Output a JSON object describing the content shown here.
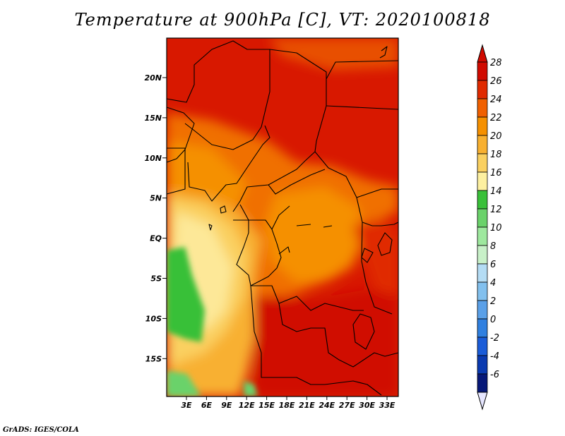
{
  "title": "Temperature at 900hPa [C], VT: 2020100818",
  "credit": "GrADS: IGES/COLA",
  "map": {
    "lat_labels": [
      "20N",
      "15N",
      "10N",
      "5N",
      "EQ",
      "5S",
      "10S",
      "15S"
    ],
    "lon_labels": [
      "3E",
      "6E",
      "9E",
      "12E",
      "15E",
      "18E",
      "21E",
      "24E",
      "27E",
      "30E",
      "33E"
    ]
  },
  "colorbar": {
    "levels": [
      "28",
      "26",
      "24",
      "22",
      "20",
      "18",
      "16",
      "14",
      "12",
      "10",
      "8",
      "6",
      "4",
      "2",
      "0",
      "-2",
      "-4",
      "-6"
    ],
    "colors": [
      "#d00a00",
      "#e02a00",
      "#f06000",
      "#f59000",
      "#f8b030",
      "#fad060",
      "#fdf0a0",
      "#39c039",
      "#6ad26a",
      "#9ee89e",
      "#c8f0c8",
      "#b4dcf4",
      "#82c0ee",
      "#5aa0e8",
      "#3080e0",
      "#1a5cd8",
      "#0a3ab0",
      "#061878"
    ],
    "top_color": "#d00a00",
    "bottom_color": "#e6e6ff"
  }
}
